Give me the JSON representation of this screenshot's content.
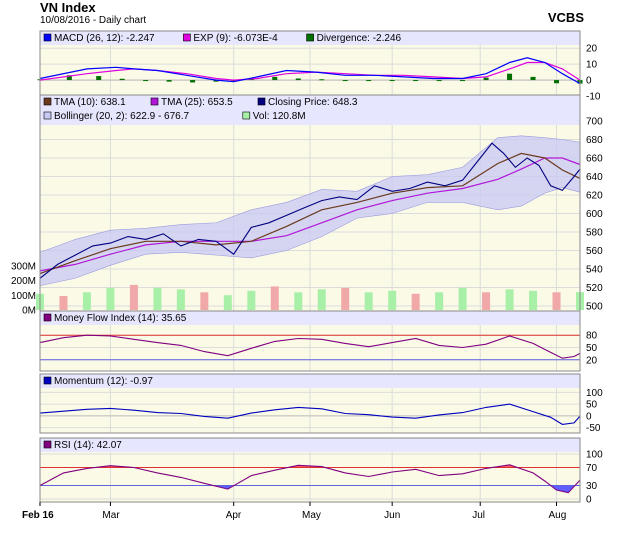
{
  "header": {
    "title": "VN Index",
    "subtitle": "10/08/2016 - Daily chart",
    "brand": "VCBS"
  },
  "colors": {
    "panel_bg": "#fafae6",
    "frame": "#8a8a8a",
    "grid": "#dcdcdc",
    "legend_bar": "#e6e6ff",
    "price": "#000080",
    "tma10": "#6b3a1e",
    "tma25": "#b018d8",
    "bollinger_fill": "#c8c8f4",
    "vol_up": "#a8f0a8",
    "vol_down": "#f0a8a8",
    "macd": "#0000ff",
    "exp": "#e000e0",
    "divergence": "#007000",
    "mfi": "#800080",
    "momentum": "#0000c0",
    "rsi": "#800080",
    "ref_red": "#e03030",
    "ref_blue": "#6060e0",
    "fill_red": "#ff6060",
    "fill_blue": "#6060ff"
  },
  "x_axis": {
    "months": [
      {
        "label": "Feb 16",
        "day": 0,
        "bold": true
      },
      {
        "label": "Mar",
        "day": 12
      },
      {
        "label": "Apr",
        "day": 33
      },
      {
        "label": "May",
        "day": 46
      },
      {
        "label": "Jun",
        "day": 60
      },
      {
        "label": "Jul",
        "day": 75
      },
      {
        "label": "Aug",
        "day": 88
      }
    ],
    "total_days": 92
  },
  "chart_data": [
    {
      "type": "bar",
      "panel": "macd",
      "legend": [
        {
          "label": "MACD (26, 12): -2.247",
          "color": "#0000ff"
        },
        {
          "label": "EXP (9): -6.073E-4",
          "color": "#e000e0"
        },
        {
          "label": "Divergence: -2.246",
          "color": "#007000"
        }
      ],
      "ylim": [
        -10,
        22
      ],
      "ticks": [
        20,
        10,
        0,
        -10
      ],
      "series": [
        {
          "name": "MACD (26, 12)",
          "kind": "line",
          "x": [
            0,
            8,
            13,
            16,
            20,
            25,
            30,
            33,
            37,
            42,
            47,
            52,
            57,
            62,
            67,
            72,
            76,
            80,
            83,
            86,
            89,
            92
          ],
          "values": [
            1,
            7,
            8,
            7,
            6,
            3,
            0,
            -1,
            2,
            6,
            5,
            3,
            3,
            2,
            1,
            1,
            4,
            11,
            14,
            11,
            4,
            -2.2
          ]
        },
        {
          "name": "EXP (9)",
          "kind": "line",
          "x": [
            0,
            8,
            13,
            16,
            20,
            25,
            30,
            33,
            37,
            42,
            47,
            52,
            57,
            62,
            67,
            72,
            76,
            80,
            83,
            86,
            89,
            92
          ],
          "values": [
            0,
            4,
            6,
            7,
            6,
            4,
            1,
            0,
            1,
            4,
            5,
            4,
            3,
            3,
            2,
            1,
            2,
            7,
            11,
            11,
            7,
            0
          ]
        },
        {
          "name": "Divergence",
          "kind": "bar",
          "x": [
            0,
            5,
            10,
            14,
            18,
            22,
            26,
            30,
            33,
            36,
            40,
            44,
            48,
            52,
            56,
            60,
            64,
            68,
            72,
            76,
            80,
            84,
            88,
            92
          ],
          "values": [
            0.5,
            3,
            2.5,
            0.8,
            -0.5,
            -1,
            -1.5,
            -1,
            -0.5,
            1,
            2,
            1,
            0.5,
            -0.5,
            0,
            -0.5,
            -0.5,
            -0.5,
            0,
            1.5,
            4,
            2,
            -2,
            -2.2
          ]
        }
      ]
    },
    {
      "type": "line",
      "panel": "price",
      "legend": [
        {
          "label": "TMA (10): 638.1",
          "color": "#6b3a1e"
        },
        {
          "label": "TMA (25): 653.5",
          "color": "#b018d8"
        },
        {
          "label": "Closing Price: 648.3",
          "color": "#000080"
        },
        {
          "label": "Bollinger (20, 2): 622.9 - 676.7",
          "color": "#c8c8f4"
        },
        {
          "label": "Vol: 120.8M",
          "color": "#a8f0a8"
        }
      ],
      "ylim": [
        500,
        700
      ],
      "ticks": [
        700,
        680,
        660,
        640,
        620,
        600,
        580,
        560,
        540,
        520,
        500
      ],
      "series": [
        {
          "name": "Closing Price",
          "x": [
            0,
            3,
            6,
            9,
            12,
            15,
            18,
            21,
            24,
            27,
            30,
            33,
            36,
            39,
            42,
            45,
            48,
            51,
            54,
            57,
            60,
            63,
            66,
            69,
            72,
            75,
            77,
            79,
            81,
            83,
            85,
            87,
            89,
            91,
            92
          ],
          "values": [
            530,
            545,
            555,
            565,
            568,
            575,
            572,
            578,
            565,
            572,
            570,
            556,
            585,
            590,
            598,
            606,
            614,
            618,
            615,
            630,
            624,
            627,
            634,
            630,
            636,
            660,
            676,
            665,
            650,
            660,
            652,
            630,
            625,
            640,
            648
          ]
        },
        {
          "name": "TMA (10)",
          "x": [
            0,
            6,
            12,
            18,
            24,
            30,
            36,
            42,
            48,
            54,
            60,
            66,
            72,
            78,
            82,
            86,
            89,
            92
          ],
          "values": [
            535,
            549,
            562,
            570,
            570,
            566,
            570,
            586,
            604,
            612,
            622,
            628,
            630,
            654,
            665,
            660,
            647,
            638
          ]
        },
        {
          "name": "TMA (25)",
          "x": [
            0,
            6,
            12,
            18,
            24,
            30,
            36,
            42,
            48,
            54,
            60,
            66,
            72,
            78,
            82,
            86,
            89,
            92
          ],
          "values": [
            538,
            545,
            556,
            566,
            570,
            570,
            570,
            576,
            590,
            604,
            614,
            622,
            627,
            637,
            648,
            660,
            660,
            653
          ]
        },
        {
          "name": "Bollinger upper",
          "x": [
            0,
            6,
            12,
            18,
            24,
            30,
            36,
            42,
            48,
            54,
            60,
            66,
            72,
            78,
            82,
            86,
            89,
            92
          ],
          "values": [
            558,
            572,
            582,
            584,
            588,
            590,
            604,
            612,
            626,
            624,
            640,
            642,
            650,
            682,
            684,
            682,
            680,
            677
          ]
        },
        {
          "name": "Bollinger lower",
          "x": [
            0,
            6,
            12,
            18,
            24,
            30,
            36,
            42,
            48,
            54,
            60,
            66,
            72,
            78,
            82,
            86,
            89,
            92
          ],
          "values": [
            522,
            530,
            544,
            556,
            558,
            555,
            552,
            560,
            575,
            595,
            600,
            612,
            612,
            604,
            608,
            622,
            628,
            623
          ]
        }
      ]
    },
    {
      "type": "bar",
      "panel": "volume",
      "ylabel_ticks": [
        "300M",
        "200M",
        "100M",
        "0M"
      ],
      "ylim": [
        0,
        400
      ],
      "series": [
        {
          "name": "Vol",
          "x": [
            0,
            4,
            8,
            12,
            16,
            20,
            24,
            28,
            32,
            36,
            40,
            44,
            48,
            52,
            56,
            60,
            64,
            68,
            72,
            76,
            80,
            84,
            88,
            92
          ],
          "values": [
            110,
            95,
            120,
            150,
            170,
            150,
            140,
            120,
            100,
            130,
            160,
            120,
            140,
            150,
            120,
            130,
            110,
            120,
            150,
            120,
            140,
            130,
            120,
            121
          ]
        }
      ]
    },
    {
      "type": "line",
      "panel": "mfi",
      "legend": [
        {
          "label": "Money Flow Index (14): 35.65",
          "color": "#800080"
        }
      ],
      "ylim": [
        0,
        100
      ],
      "ticks": [
        80,
        50,
        20
      ],
      "ref_lines": [
        80,
        20
      ],
      "series": [
        {
          "name": "Money Flow Index (14)",
          "x": [
            0,
            4,
            8,
            12,
            16,
            20,
            24,
            28,
            32,
            36,
            40,
            44,
            48,
            52,
            56,
            60,
            64,
            68,
            72,
            76,
            80,
            84,
            87,
            89,
            91,
            92
          ],
          "values": [
            62,
            74,
            80,
            78,
            70,
            62,
            55,
            40,
            30,
            48,
            65,
            72,
            70,
            60,
            52,
            62,
            72,
            55,
            50,
            58,
            78,
            60,
            38,
            24,
            28,
            35.65
          ]
        }
      ]
    },
    {
      "type": "line",
      "panel": "momentum",
      "legend": [
        {
          "label": "Momentum (12): -0.97",
          "color": "#0000c0"
        }
      ],
      "ylim": [
        -60,
        110
      ],
      "ticks": [
        100,
        50,
        0,
        -50
      ],
      "series": [
        {
          "name": "Momentum (12)",
          "x": [
            0,
            4,
            8,
            12,
            16,
            20,
            24,
            28,
            32,
            36,
            40,
            44,
            48,
            52,
            56,
            60,
            64,
            68,
            72,
            76,
            80,
            84,
            87,
            89,
            91,
            92
          ],
          "values": [
            12,
            20,
            28,
            32,
            24,
            14,
            10,
            -2,
            -10,
            12,
            26,
            36,
            30,
            10,
            5,
            -5,
            -10,
            4,
            14,
            36,
            50,
            18,
            -6,
            -36,
            -30,
            -0.97
          ]
        }
      ]
    },
    {
      "type": "line",
      "panel": "rsi",
      "legend": [
        {
          "label": "RSI (14): 42.07",
          "color": "#800080"
        }
      ],
      "ylim": [
        0,
        100
      ],
      "ticks": [
        100,
        70,
        30,
        0
      ],
      "ref_lines": [
        70,
        30
      ],
      "series": [
        {
          "name": "RSI (14)",
          "x": [
            0,
            4,
            8,
            12,
            16,
            20,
            24,
            28,
            32,
            36,
            40,
            44,
            48,
            52,
            56,
            60,
            64,
            68,
            72,
            76,
            80,
            84,
            86,
            88,
            90,
            92
          ],
          "values": [
            30,
            58,
            68,
            74,
            70,
            58,
            48,
            35,
            22,
            52,
            64,
            75,
            72,
            58,
            50,
            60,
            66,
            52,
            56,
            68,
            76,
            58,
            40,
            20,
            14,
            42.07
          ]
        }
      ]
    }
  ]
}
